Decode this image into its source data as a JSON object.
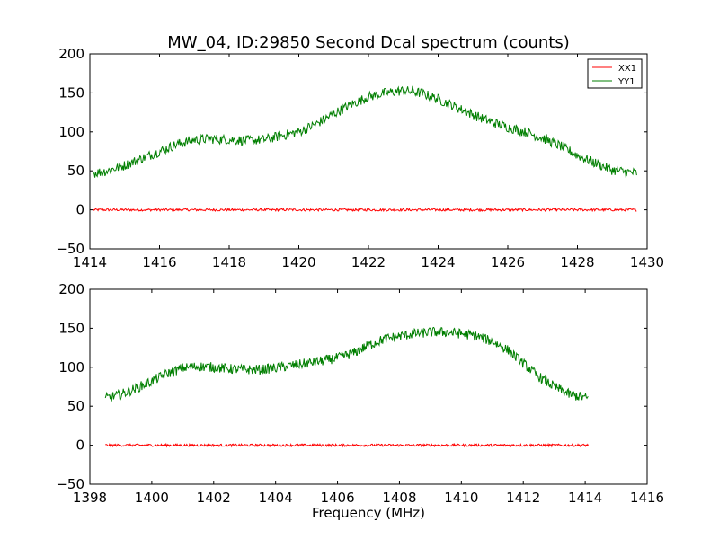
{
  "title": "MW_04, ID:29850 Second Dcal spectrum (counts)",
  "colors": {
    "XX1": "#ff0000",
    "YY1": "#007f00",
    "axes": "#000000",
    "background": "#ffffff"
  },
  "chart_data": [
    {
      "type": "line",
      "title": "MW_04, ID:29850 Second Dcal spectrum (counts)",
      "xlabel": "",
      "ylabel": "",
      "xlim": [
        1414,
        1430
      ],
      "ylim": [
        -50,
        200
      ],
      "xticks": [
        1414,
        1416,
        1418,
        1420,
        1422,
        1424,
        1426,
        1428,
        1430
      ],
      "yticks": [
        -50,
        0,
        50,
        100,
        150,
        200
      ],
      "grid": false,
      "legend": {
        "position": "top-right",
        "entries": [
          "XX1",
          "YY1"
        ]
      },
      "series": [
        {
          "name": "XX1",
          "color": "#ff0000",
          "x": [
            1414.1,
            1429.7
          ],
          "y": [
            0,
            0
          ],
          "noise": 1
        },
        {
          "name": "YY1",
          "color": "#007f00",
          "x": [
            1414.1,
            1414.5,
            1415.0,
            1415.5,
            1416.0,
            1416.5,
            1417.0,
            1417.5,
            1418.0,
            1418.5,
            1419.0,
            1419.5,
            1420.0,
            1420.5,
            1421.0,
            1421.5,
            1422.0,
            1422.5,
            1423.0,
            1423.5,
            1424.0,
            1424.5,
            1425.0,
            1425.5,
            1426.0,
            1426.5,
            1427.0,
            1427.5,
            1428.0,
            1428.5,
            1429.0,
            1429.7
          ],
          "y": [
            47,
            50,
            57,
            66,
            75,
            84,
            90,
            91,
            90,
            89,
            90,
            95,
            100,
            110,
            123,
            135,
            145,
            150,
            153,
            150,
            142,
            132,
            122,
            113,
            106,
            100,
            92,
            82,
            70,
            60,
            51,
            47
          ],
          "noise": 4
        }
      ]
    },
    {
      "type": "line",
      "title": "",
      "xlabel": "Frequency (MHz)",
      "ylabel": "",
      "xlim": [
        1398,
        1416
      ],
      "ylim": [
        -50,
        200
      ],
      "xticks": [
        1398,
        1400,
        1402,
        1404,
        1406,
        1408,
        1410,
        1412,
        1414,
        1416
      ],
      "yticks": [
        -50,
        0,
        50,
        100,
        150,
        200
      ],
      "grid": false,
      "series": [
        {
          "name": "XX1",
          "color": "#ff0000",
          "x": [
            1398.5,
            1414.1
          ],
          "y": [
            0,
            0
          ],
          "noise": 1
        },
        {
          "name": "YY1",
          "color": "#007f00",
          "x": [
            1398.5,
            1399.0,
            1399.5,
            1400.0,
            1400.5,
            1401.0,
            1401.5,
            1402.0,
            1402.5,
            1403.0,
            1403.5,
            1404.0,
            1404.5,
            1405.0,
            1405.5,
            1406.0,
            1406.5,
            1407.0,
            1407.5,
            1408.0,
            1408.5,
            1409.0,
            1409.5,
            1410.0,
            1410.5,
            1411.0,
            1411.5,
            1412.0,
            1412.5,
            1413.0,
            1413.5,
            1414.1
          ],
          "y": [
            60,
            65,
            73,
            82,
            92,
            99,
            101,
            100,
            98,
            97,
            97,
            99,
            102,
            105,
            108,
            112,
            118,
            128,
            136,
            140,
            143,
            145,
            145,
            143,
            140,
            133,
            122,
            105,
            88,
            75,
            65,
            60
          ],
          "noise": 4
        }
      ]
    }
  ]
}
